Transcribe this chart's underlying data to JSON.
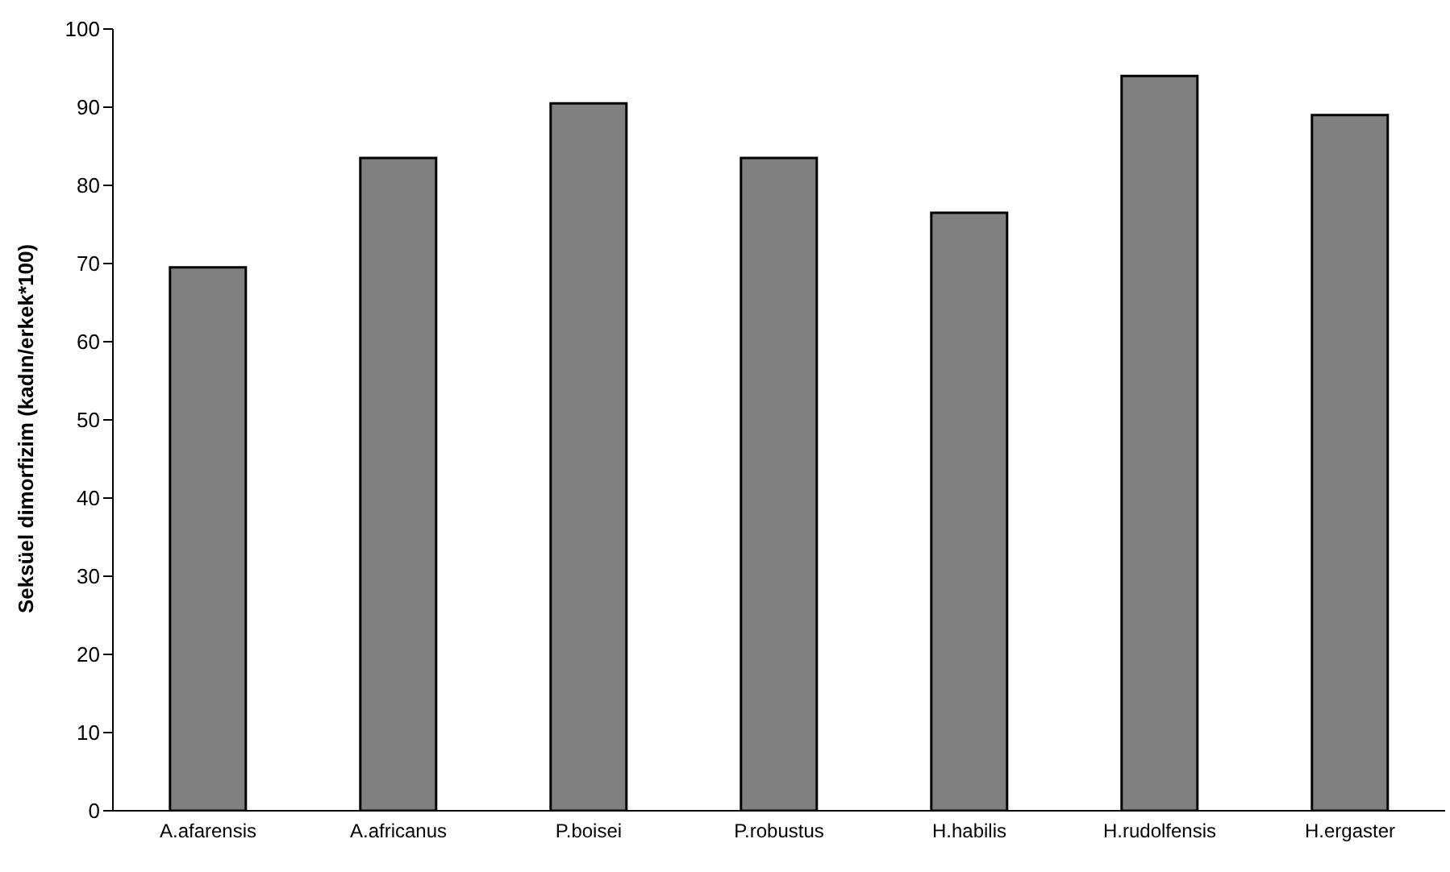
{
  "chart_data": {
    "type": "bar",
    "ylabel": "Seksüel dimorfizim (kadın/erkek*100)",
    "categories": [
      "A.afarensis",
      "A.africanus",
      "P.boisei",
      "P.robustus",
      "H.habilis",
      "H.rudolfensis",
      "H.ergaster"
    ],
    "values": [
      69.5,
      83.5,
      90.5,
      83.5,
      76.5,
      94,
      89
    ],
    "color": "#808080",
    "ylim": [
      0,
      100
    ],
    "yticks": [
      0,
      10,
      20,
      30,
      40,
      50,
      60,
      70,
      80,
      90,
      100
    ],
    "grid": false,
    "legend": false
  }
}
